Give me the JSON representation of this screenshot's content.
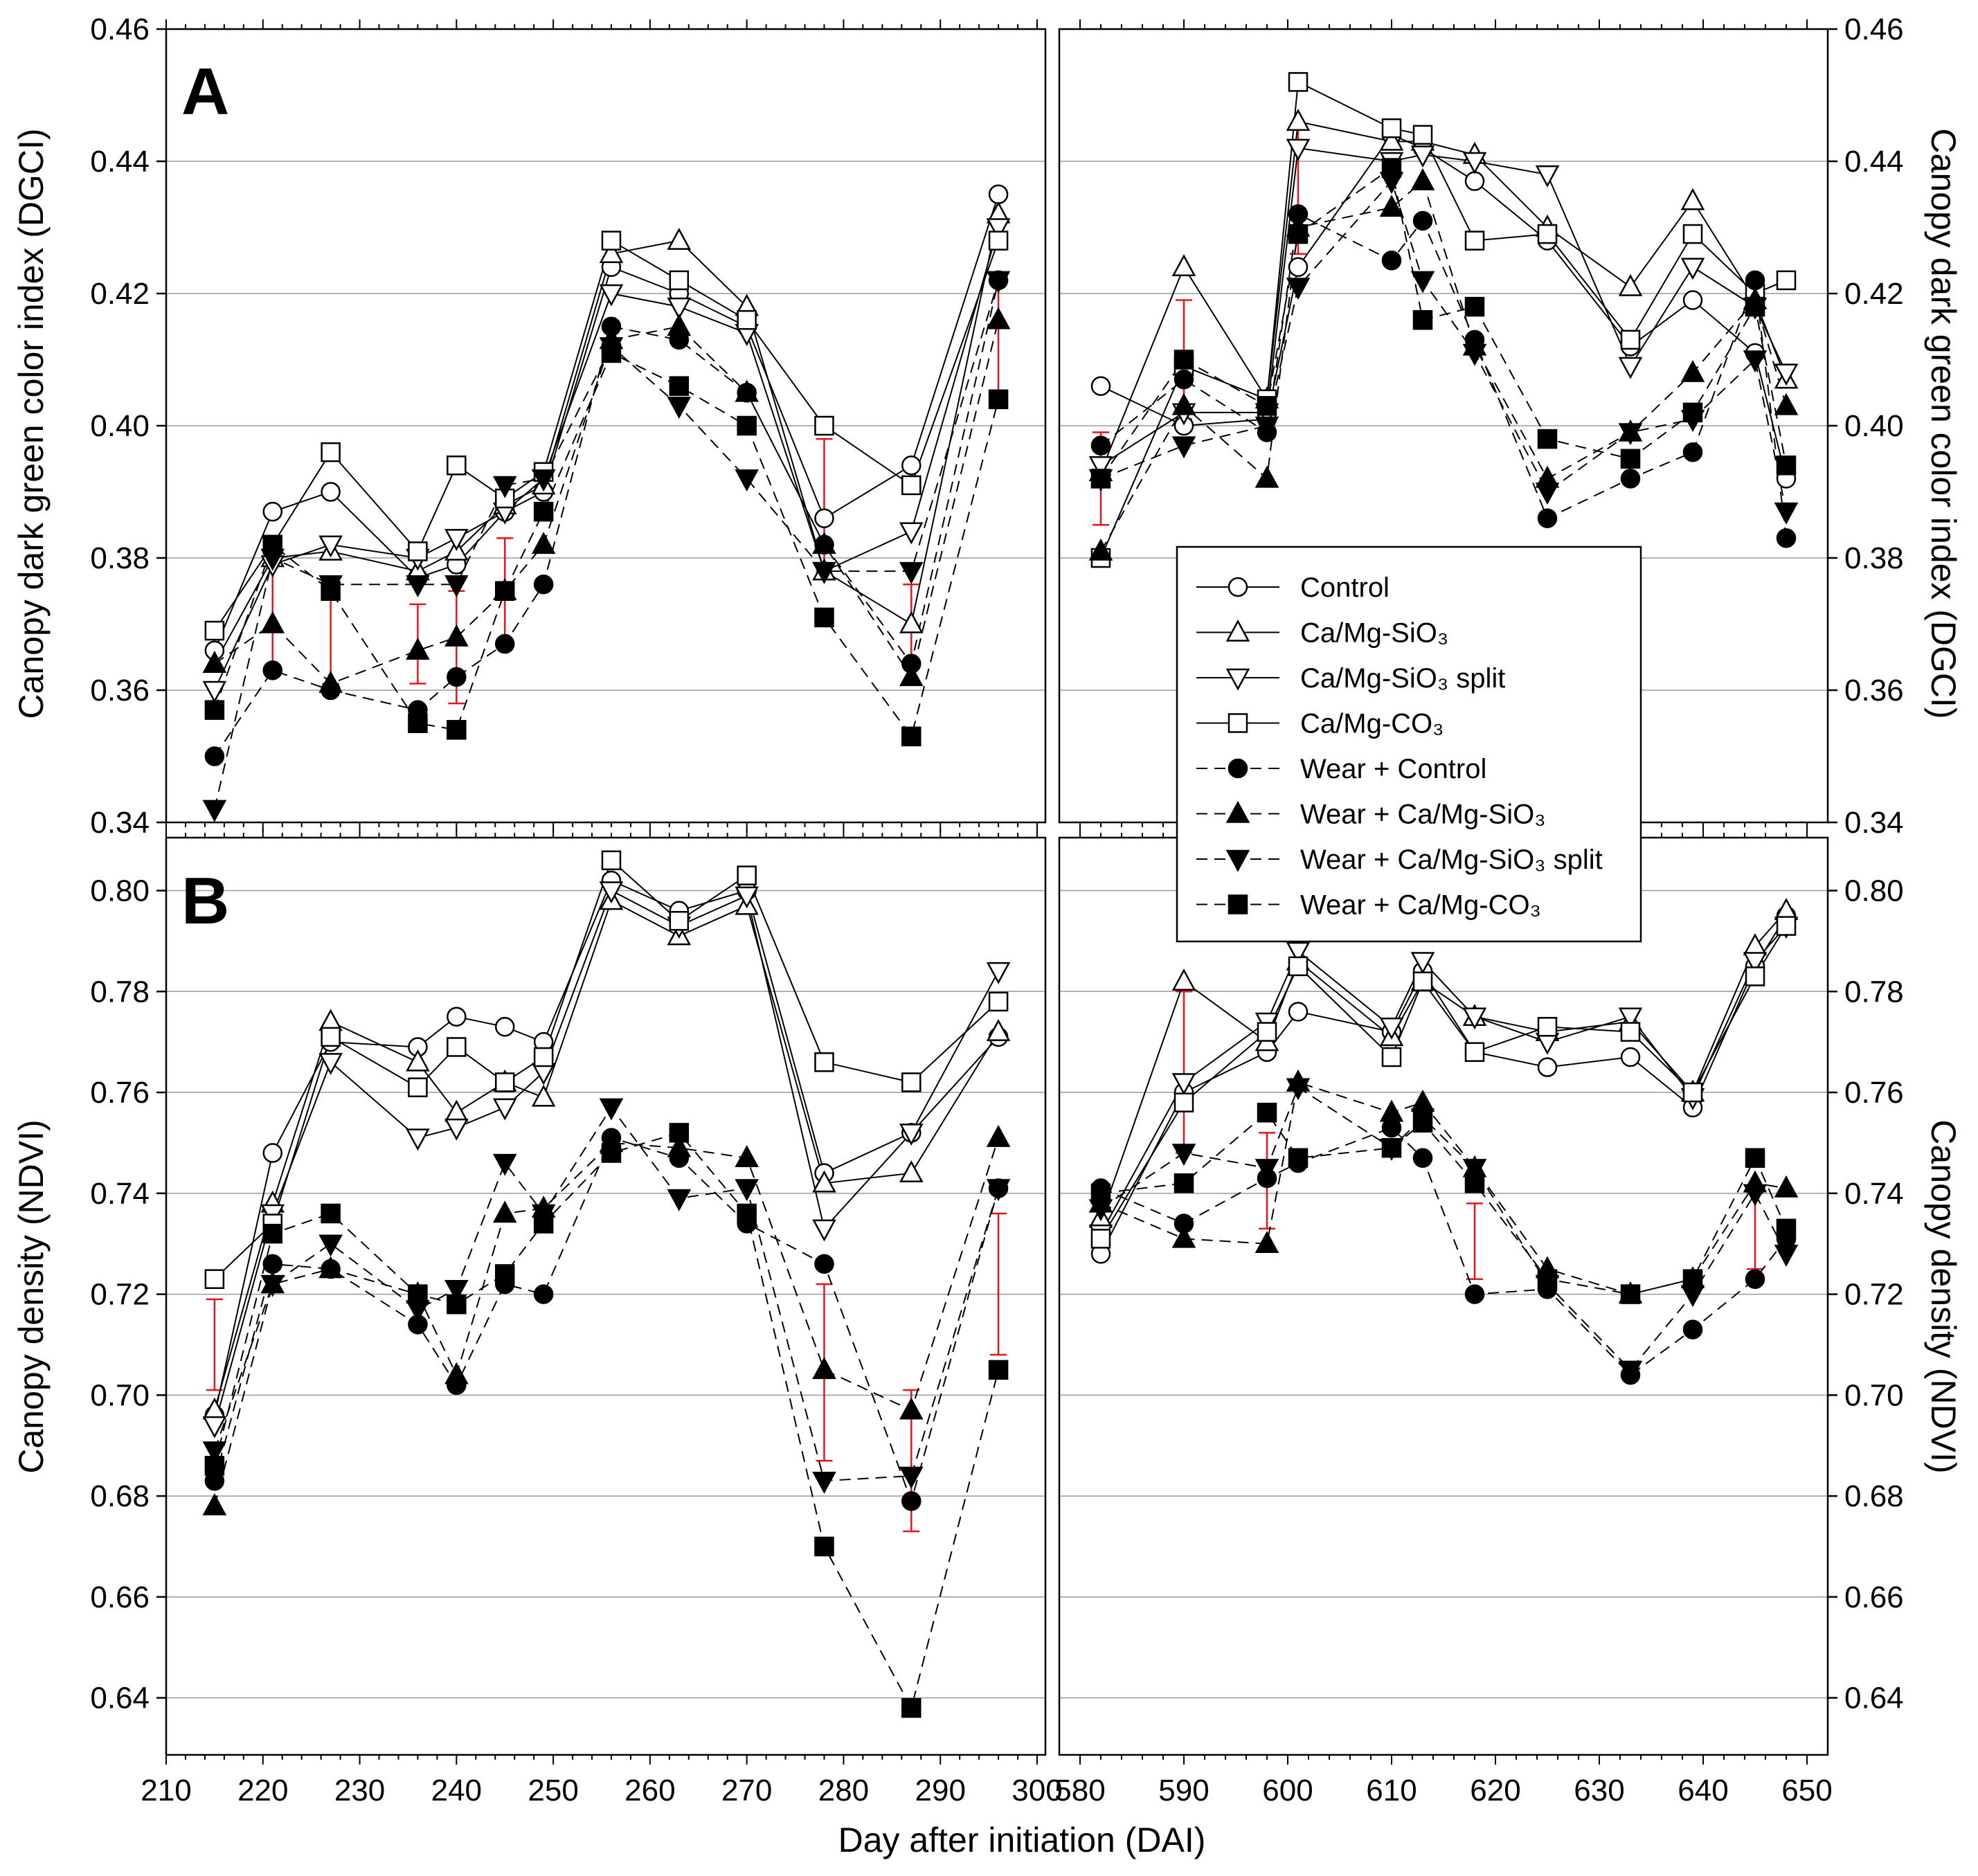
{
  "figure": {
    "x_label": "Day after initiation (DAI)",
    "x_ticks_left": [
      210,
      220,
      230,
      240,
      250,
      260,
      270,
      280,
      290,
      300
    ],
    "x_ticks_right": [
      580,
      590,
      600,
      610,
      620,
      630,
      640,
      650
    ],
    "errorbar_color": "#e8141c"
  },
  "legend": [
    {
      "key": "c",
      "label": "Control",
      "marker": "circle",
      "filled": false,
      "dashed": false
    },
    {
      "key": "s",
      "label": "Ca/Mg-SiO₃",
      "marker": "triangle-up",
      "filled": false,
      "dashed": false
    },
    {
      "key": "sp",
      "label": "Ca/Mg-SiO₃ split",
      "marker": "triangle-down",
      "filled": false,
      "dashed": false
    },
    {
      "key": "co",
      "label": "Ca/Mg-CO₃",
      "marker": "square",
      "filled": false,
      "dashed": false
    },
    {
      "key": "wc",
      "label": "Wear + Control",
      "marker": "circle",
      "filled": true,
      "dashed": true
    },
    {
      "key": "ws",
      "label": "Wear + Ca/Mg-SiO₃",
      "marker": "triangle-up",
      "filled": true,
      "dashed": true
    },
    {
      "key": "wsp",
      "label": "Wear + Ca/Mg-SiO₃ split",
      "marker": "triangle-down",
      "filled": true,
      "dashed": true
    },
    {
      "key": "wco",
      "label": "Wear + Ca/Mg-CO₃",
      "marker": "square",
      "filled": true,
      "dashed": true
    }
  ],
  "chart_data": [
    {
      "panel": "A",
      "type": "line",
      "ylabel": "Canopy dark green color index (DGCI)",
      "ylim": [
        0.34,
        0.46
      ],
      "yticks": [
        "0.34",
        "0.36",
        "0.38",
        "0.40",
        "0.42",
        "0.44",
        "0.46"
      ],
      "x_left": [
        215,
        221,
        227,
        236,
        240,
        245,
        249,
        256,
        263,
        270,
        278,
        287,
        296
      ],
      "x_right": [
        582,
        590,
        598,
        601,
        610,
        613,
        618,
        625,
        633,
        639,
        645,
        648
      ],
      "series": [
        {
          "key": "c",
          "left": [
            0.366,
            0.387,
            0.39,
            0.377,
            0.379,
            0.387,
            0.39,
            0.424,
            0.42,
            0.415,
            0.386,
            0.394,
            0.435
          ],
          "right": [
            0.406,
            0.4,
            0.401,
            0.424,
            0.444,
            0.442,
            0.437,
            0.428,
            0.412,
            0.419,
            0.411,
            0.392
          ]
        },
        {
          "key": "s",
          "left": [
            0.364,
            0.38,
            0.381,
            0.378,
            0.381,
            0.388,
            0.391,
            0.426,
            0.428,
            0.418,
            0.378,
            0.37,
            0.432
          ],
          "right": [
            0.393,
            0.424,
            0.404,
            0.446,
            0.443,
            0.443,
            0.441,
            0.43,
            0.421,
            0.434,
            0.419,
            0.407
          ]
        },
        {
          "key": "sp",
          "left": [
            0.36,
            0.379,
            0.382,
            0.38,
            0.383,
            0.387,
            0.392,
            0.42,
            0.418,
            0.414,
            0.378,
            0.384,
            0.43
          ],
          "right": [
            0.394,
            0.402,
            0.402,
            0.442,
            0.44,
            0.441,
            0.44,
            0.438,
            0.409,
            0.424,
            0.418,
            0.408
          ]
        },
        {
          "key": "co",
          "left": [
            0.369,
            0.382,
            0.396,
            0.381,
            0.394,
            0.389,
            0.393,
            0.428,
            0.422,
            0.416,
            0.4,
            0.391,
            0.428
          ],
          "right": [
            0.38,
            0.409,
            0.404,
            0.452,
            0.445,
            0.444,
            0.428,
            0.429,
            0.413,
            0.429,
            0.42,
            0.422
          ]
        },
        {
          "key": "wc",
          "left": [
            0.35,
            0.363,
            0.36,
            0.357,
            0.362,
            0.367,
            0.376,
            0.415,
            0.413,
            0.405,
            0.382,
            0.364,
            0.422
          ],
          "right": [
            0.397,
            0.407,
            0.399,
            0.432,
            0.425,
            0.431,
            0.413,
            0.386,
            0.392,
            0.396,
            0.422,
            0.383
          ]
        },
        {
          "key": "ws",
          "left": [
            0.364,
            0.37,
            0.361,
            0.366,
            0.368,
            0.375,
            0.382,
            0.413,
            0.415,
            0.405,
            0.382,
            0.362,
            0.416
          ],
          "right": [
            0.381,
            0.403,
            0.392,
            0.43,
            0.433,
            0.437,
            0.412,
            0.392,
            0.399,
            0.408,
            0.419,
            0.403
          ]
        },
        {
          "key": "wsp",
          "left": [
            0.342,
            0.38,
            0.376,
            0.376,
            0.376,
            0.391,
            0.392,
            0.412,
            0.403,
            0.392,
            0.378,
            0.378,
            0.422
          ],
          "right": [
            0.392,
            0.397,
            0.4,
            0.421,
            0.437,
            0.422,
            0.411,
            0.39,
            0.399,
            0.401,
            0.41,
            0.387
          ]
        },
        {
          "key": "wco",
          "left": [
            0.357,
            0.382,
            0.375,
            0.355,
            0.354,
            0.375,
            0.387,
            0.411,
            0.406,
            0.4,
            0.371,
            0.353,
            0.404
          ],
          "right": [
            0.392,
            0.41,
            0.403,
            0.429,
            0.439,
            0.416,
            0.418,
            0.398,
            0.395,
            0.402,
            0.418,
            0.394
          ]
        }
      ],
      "error_bars": {
        "left": [
          {
            "x": 221,
            "low": 0.363,
            "high": 0.381
          },
          {
            "x": 227,
            "low": 0.361,
            "high": 0.376
          },
          {
            "x": 236,
            "low": 0.361,
            "high": 0.373
          },
          {
            "x": 240,
            "low": 0.358,
            "high": 0.375
          },
          {
            "x": 245,
            "low": 0.367,
            "high": 0.383
          },
          {
            "x": 278,
            "low": 0.378,
            "high": 0.398
          },
          {
            "x": 287,
            "low": 0.364,
            "high": 0.376
          },
          {
            "x": 296,
            "low": 0.404,
            "high": 0.422
          }
        ],
        "right": [
          {
            "x": 582,
            "low": 0.385,
            "high": 0.399
          },
          {
            "x": 590,
            "low": 0.401,
            "high": 0.419
          },
          {
            "x": 601,
            "low": 0.426,
            "high": 0.445
          }
        ]
      }
    },
    {
      "panel": "B",
      "type": "line",
      "ylabel": "Canopy density (NDVI)",
      "ylim": [
        0.63,
        0.81
      ],
      "yticks": [
        "0.64",
        "0.66",
        "0.68",
        "0.70",
        "0.72",
        "0.74",
        "0.76",
        "0.78",
        "0.80"
      ],
      "x_left": [
        215,
        221,
        227,
        236,
        240,
        245,
        249,
        256,
        263,
        270,
        278,
        287,
        296
      ],
      "x_right": [
        582,
        590,
        598,
        601,
        610,
        613,
        618,
        625,
        633,
        639,
        645,
        648
      ],
      "series": [
        {
          "key": "c",
          "left": [
            0.696,
            0.748,
            0.77,
            0.769,
            0.775,
            0.773,
            0.77,
            0.802,
            0.796,
            0.8,
            0.744,
            0.752,
            0.771
          ],
          "right": [
            0.728,
            0.76,
            0.768,
            0.776,
            0.772,
            0.784,
            0.768,
            0.765,
            0.767,
            0.757,
            0.785,
            0.795
          ]
        },
        {
          "key": "s",
          "left": [
            0.697,
            0.738,
            0.774,
            0.766,
            0.756,
            0.762,
            0.759,
            0.798,
            0.791,
            0.797,
            0.742,
            0.744,
            0.772
          ],
          "right": [
            0.735,
            0.782,
            0.77,
            0.786,
            0.771,
            0.782,
            0.775,
            0.772,
            0.774,
            0.76,
            0.789,
            0.796
          ]
        },
        {
          "key": "sp",
          "left": [
            0.694,
            0.736,
            0.766,
            0.751,
            0.753,
            0.757,
            0.764,
            0.8,
            0.793,
            0.799,
            0.733,
            0.752,
            0.784
          ],
          "right": [
            0.732,
            0.762,
            0.774,
            0.788,
            0.773,
            0.786,
            0.775,
            0.77,
            0.775,
            0.759,
            0.786,
            0.793
          ]
        },
        {
          "key": "co",
          "left": [
            0.723,
            0.734,
            0.771,
            0.761,
            0.769,
            0.762,
            0.767,
            0.806,
            0.794,
            0.803,
            0.766,
            0.762,
            0.778
          ],
          "right": [
            0.731,
            0.758,
            0.772,
            0.785,
            0.767,
            0.782,
            0.768,
            0.773,
            0.772,
            0.76,
            0.783,
            0.793
          ]
        },
        {
          "key": "wc",
          "left": [
            0.683,
            0.726,
            0.725,
            0.714,
            0.702,
            0.722,
            0.72,
            0.751,
            0.747,
            0.734,
            0.726,
            0.679,
            0.741
          ],
          "right": [
            0.741,
            0.734,
            0.743,
            0.746,
            0.753,
            0.747,
            0.72,
            0.721,
            0.704,
            0.713,
            0.723,
            0.731
          ]
        },
        {
          "key": "ws",
          "left": [
            0.678,
            0.722,
            0.725,
            0.72,
            0.704,
            0.736,
            0.737,
            0.75,
            0.749,
            0.747,
            0.705,
            0.697,
            0.751
          ],
          "right": [
            0.738,
            0.731,
            0.73,
            0.762,
            0.756,
            0.758,
            0.745,
            0.725,
            0.72,
            0.723,
            0.742,
            0.741
          ]
        },
        {
          "key": "wsp",
          "left": [
            0.689,
            0.722,
            0.73,
            0.717,
            0.721,
            0.746,
            0.736,
            0.757,
            0.739,
            0.741,
            0.683,
            0.684,
            0.741
          ],
          "right": [
            0.737,
            0.748,
            0.745,
            0.761,
            0.749,
            0.755,
            0.745,
            0.722,
            0.705,
            0.72,
            0.74,
            0.728
          ]
        },
        {
          "key": "wco",
          "left": [
            0.686,
            0.732,
            0.736,
            0.72,
            0.718,
            0.724,
            0.734,
            0.748,
            0.752,
            0.736,
            0.67,
            0.638,
            0.705
          ],
          "right": [
            0.74,
            0.742,
            0.756,
            0.747,
            0.749,
            0.754,
            0.742,
            0.723,
            0.72,
            0.723,
            0.747,
            0.733
          ]
        }
      ],
      "error_bars": {
        "left": [
          {
            "x": 215,
            "low": 0.701,
            "high": 0.719
          },
          {
            "x": 278,
            "low": 0.687,
            "high": 0.722
          },
          {
            "x": 287,
            "low": 0.673,
            "high": 0.701
          },
          {
            "x": 296,
            "low": 0.708,
            "high": 0.736
          }
        ],
        "right": [
          {
            "x": 590,
            "low": 0.748,
            "high": 0.78
          },
          {
            "x": 598,
            "low": 0.733,
            "high": 0.752
          },
          {
            "x": 618,
            "low": 0.723,
            "high": 0.738
          },
          {
            "x": 645,
            "low": 0.725,
            "high": 0.74
          }
        ]
      }
    }
  ]
}
